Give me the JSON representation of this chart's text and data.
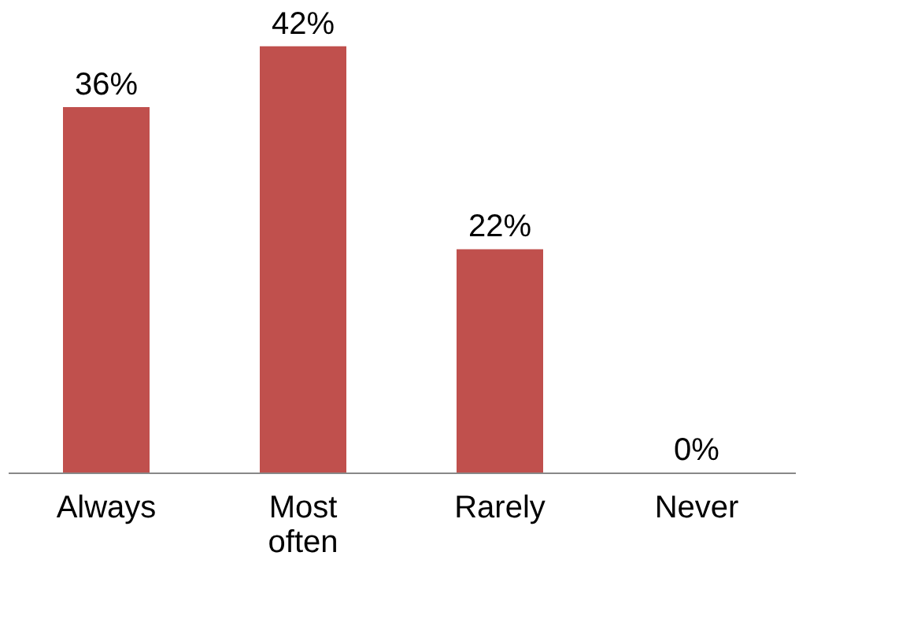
{
  "chart_data": {
    "type": "bar",
    "categories": [
      "Always",
      "Most often",
      "Rarely",
      "Never"
    ],
    "values": [
      36,
      42,
      22,
      0
    ],
    "value_labels": [
      "36%",
      "42%",
      "22%",
      "0%"
    ],
    "color": "#c0504d",
    "grid": false
  }
}
